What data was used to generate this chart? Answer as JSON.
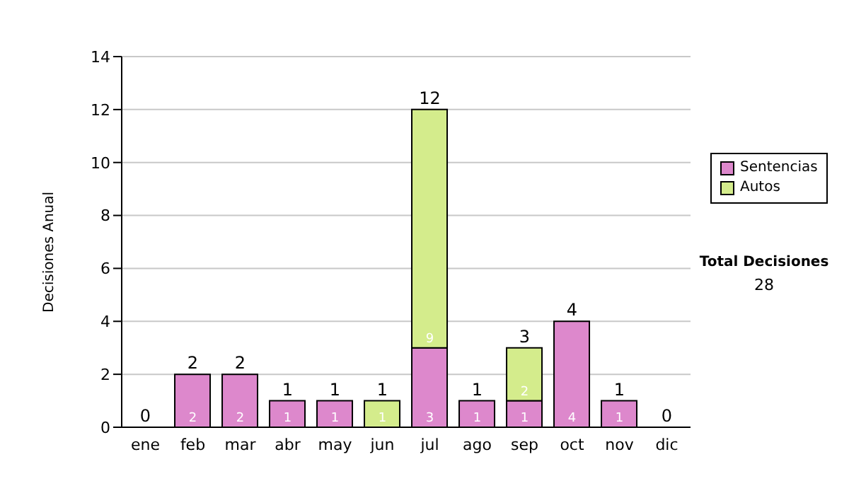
{
  "chart_data": {
    "type": "bar",
    "stacked": true,
    "ylabel": "Decisiones Anual",
    "categories": [
      "ene",
      "feb",
      "mar",
      "abr",
      "may",
      "jun",
      "jul",
      "ago",
      "sep",
      "oct",
      "nov",
      "dic"
    ],
    "series": [
      {
        "name": "Sentencias",
        "color": "#dd88cc",
        "values": [
          0,
          2,
          2,
          1,
          1,
          0,
          3,
          1,
          1,
          4,
          1,
          0
        ],
        "value_labels": [
          null,
          "2",
          "2",
          "1",
          "1",
          null,
          "3",
          "1",
          "1",
          "4",
          "1",
          null
        ]
      },
      {
        "name": "Autos",
        "color": "#d4ec8c",
        "values": [
          0,
          0,
          0,
          0,
          0,
          1,
          9,
          0,
          2,
          0,
          0,
          0
        ],
        "value_labels": [
          null,
          null,
          null,
          null,
          null,
          "1",
          "9",
          null,
          "2",
          null,
          null,
          null
        ]
      }
    ],
    "totals": [
      "0",
      "2",
      "2",
      "1",
      "1",
      "1",
      "12",
      "1",
      "3",
      "4",
      "1",
      "0"
    ],
    "ylim": [
      0,
      14
    ],
    "yticks": [
      0,
      2,
      4,
      6,
      8,
      10,
      12,
      14
    ],
    "grid": "y",
    "legend": "right",
    "annotations": [
      "Total Decisiones",
      "28"
    ]
  }
}
